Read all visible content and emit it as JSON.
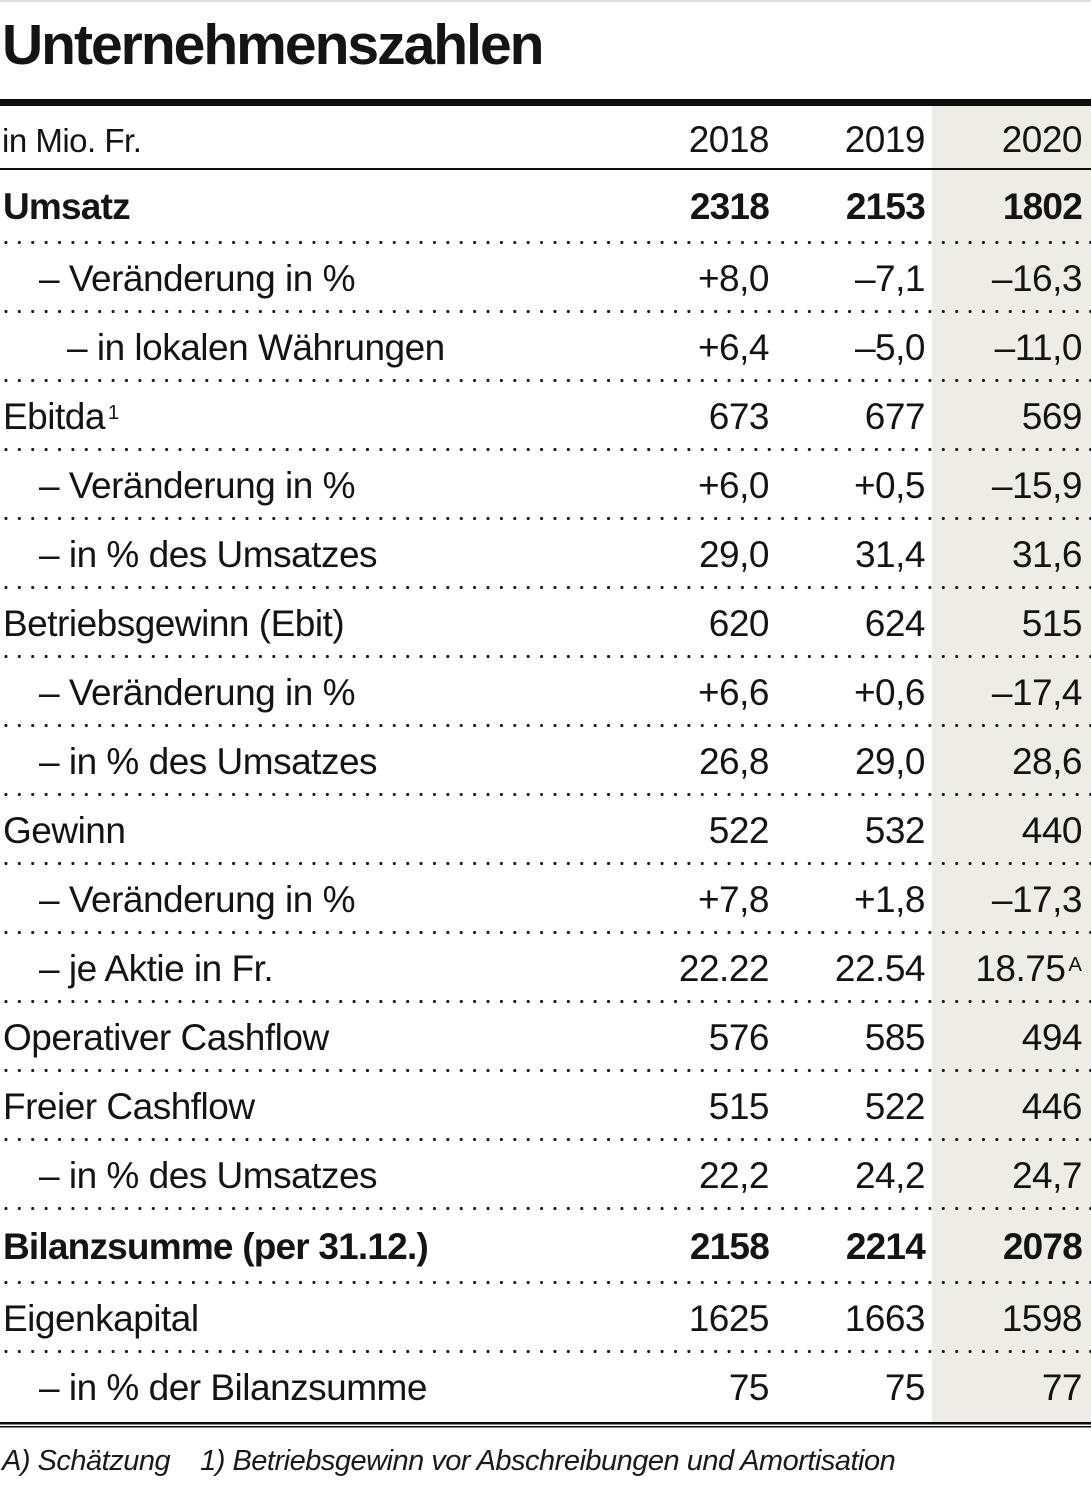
{
  "title": "Unternehmenszahlen",
  "chart_data": {
    "type": "table",
    "title": "Unternehmenszahlen",
    "unit_label": "in Mio. Fr.",
    "columns": [
      "2018",
      "2019",
      "2020"
    ],
    "highlight_column": "2020",
    "rows": [
      {
        "label": "Umsatz",
        "indent": 0,
        "bold": true,
        "values": [
          "2318",
          "2153",
          "1802"
        ]
      },
      {
        "label": "– Veränderung in %",
        "indent": 1,
        "bold": false,
        "values": [
          "+8,0",
          "–7,1",
          "–16,3"
        ]
      },
      {
        "label": "– in lokalen Währungen",
        "indent": 2,
        "bold": false,
        "values": [
          "+6,4",
          "–5,0",
          "–11,0"
        ]
      },
      {
        "label": "Ebitda",
        "label_sup": "1",
        "indent": 0,
        "bold": false,
        "values": [
          "673",
          "677",
          "569"
        ]
      },
      {
        "label": "– Veränderung in %",
        "indent": 1,
        "bold": false,
        "values": [
          "+6,0",
          "+0,5",
          "–15,9"
        ]
      },
      {
        "label": "– in % des Umsatzes",
        "indent": 1,
        "bold": false,
        "values": [
          "29,0",
          "31,4",
          "31,6"
        ]
      },
      {
        "label": "Betriebsgewinn (Ebit)",
        "indent": 0,
        "bold": false,
        "values": [
          "620",
          "624",
          "515"
        ]
      },
      {
        "label": "– Veränderung in %",
        "indent": 1,
        "bold": false,
        "values": [
          "+6,6",
          "+0,6",
          "–17,4"
        ]
      },
      {
        "label": "– in % des Umsatzes",
        "indent": 1,
        "bold": false,
        "values": [
          "26,8",
          "29,0",
          "28,6"
        ]
      },
      {
        "label": "Gewinn",
        "indent": 0,
        "bold": false,
        "values": [
          "522",
          "532",
          "440"
        ]
      },
      {
        "label": "– Veränderung in %",
        "indent": 1,
        "bold": false,
        "values": [
          "+7,8",
          "+1,8",
          "–17,3"
        ]
      },
      {
        "label": "– je Aktie in Fr.",
        "indent": 1,
        "bold": false,
        "values": [
          "22.22",
          "22.54",
          "18.75"
        ],
        "value_sups": [
          null,
          null,
          "A"
        ]
      },
      {
        "label": "Operativer Cashflow",
        "indent": 0,
        "bold": false,
        "values": [
          "576",
          "585",
          "494"
        ]
      },
      {
        "label": "Freier Cashflow",
        "indent": 0,
        "bold": false,
        "values": [
          "515",
          "522",
          "446"
        ]
      },
      {
        "label": "– in % des Umsatzes",
        "indent": 1,
        "bold": false,
        "values": [
          "22,2",
          "24,2",
          "24,7"
        ]
      },
      {
        "label": "Bilanzsumme (per 31.12.)",
        "indent": 0,
        "bold": true,
        "values": [
          "2158",
          "2214",
          "2078"
        ]
      },
      {
        "label": "Eigenkapital",
        "indent": 0,
        "bold": false,
        "values": [
          "1625",
          "1663",
          "1598"
        ]
      },
      {
        "label": "– in % der Bilanzsumme",
        "indent": 1,
        "bold": false,
        "values": [
          "75",
          "75",
          "77"
        ]
      }
    ],
    "footnotes": [
      "A) Schätzung",
      "1) Betriebsgewinn vor Abschreibungen und Amortisation"
    ]
  },
  "colors": {
    "highlight_column_bg": "#edece5",
    "rule_color": "#0d0d0d",
    "text_color": "#141414"
  }
}
